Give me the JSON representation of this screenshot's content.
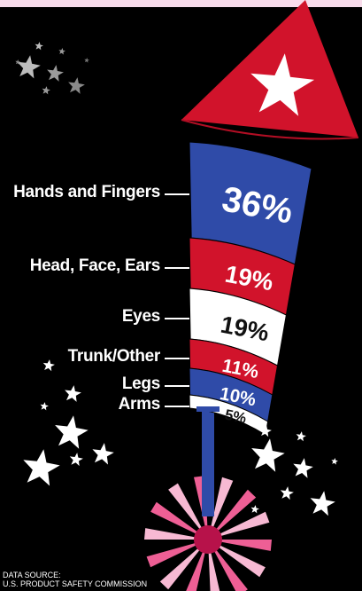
{
  "title": "",
  "source": {
    "line1": "DATA SOURCE:",
    "line2": "U.S. PRODUCT SAFETY COMMISSION"
  },
  "colors": {
    "red": "#d1132b",
    "blue": "#2f4ba8",
    "white": "#ffffff",
    "pink": "#ee5f95"
  },
  "chart_data": {
    "type": "bar",
    "categories": [
      "Hands and Fingers",
      "Head, Face, Ears",
      "Eyes",
      "Trunk/Other",
      "Legs",
      "Arms"
    ],
    "values": [
      36,
      19,
      19,
      11,
      10,
      5
    ],
    "value_labels": [
      "36%",
      "19%",
      "19%",
      "11%",
      "10%",
      "5%"
    ],
    "unit": "%"
  }
}
